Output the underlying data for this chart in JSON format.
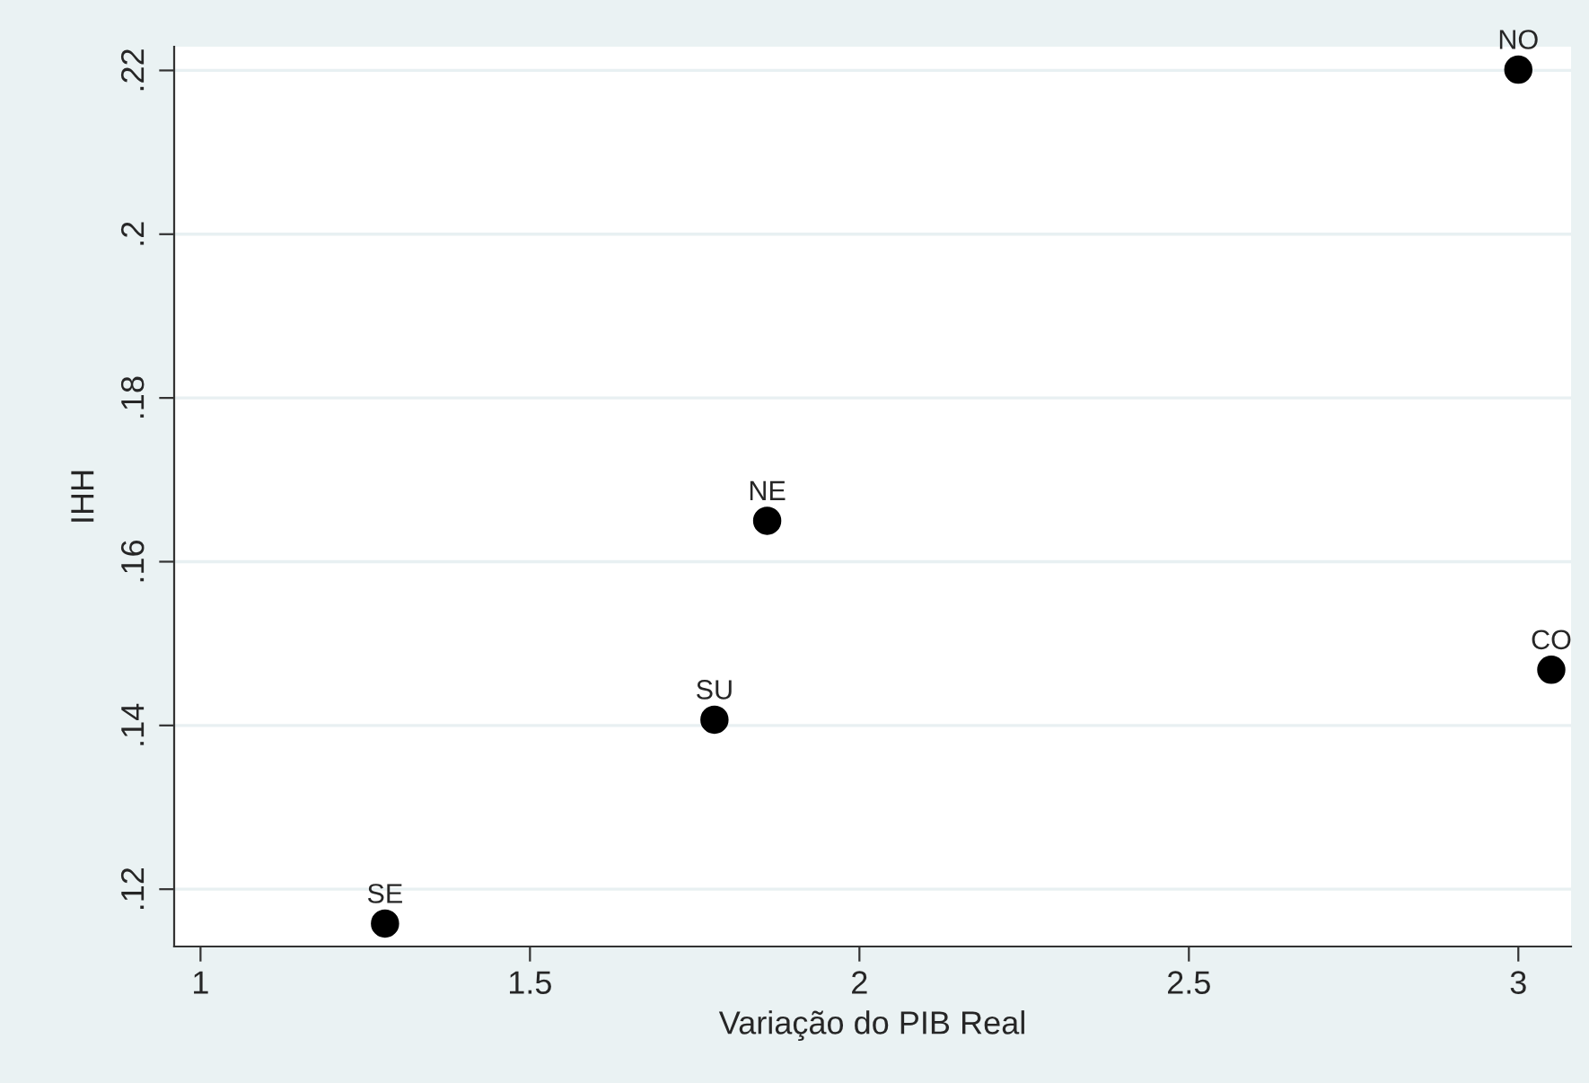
{
  "chart_data": {
    "type": "scatter",
    "xlabel": "Variação do PIB Real",
    "ylabel": "IHH",
    "x": [
      1.28,
      1.78,
      1.86,
      3.0,
      3.05
    ],
    "series": [
      {
        "color": "#000000",
        "values": [
          0.1158,
          0.1407,
          0.165,
          0.2201,
          0.1468
        ]
      }
    ],
    "annotations": [
      {
        "text": "SE",
        "x": 1.28,
        "y": 0.1158
      },
      {
        "text": "SU",
        "x": 1.78,
        "y": 0.1407
      },
      {
        "text": "NE",
        "x": 1.86,
        "y": 0.165
      },
      {
        "text": "NO",
        "x": 3.0,
        "y": 0.2201
      },
      {
        "text": "CO",
        "x": 3.05,
        "y": 0.1468
      }
    ],
    "xlim": [
      0.96,
      3.08
    ],
    "xticks": [
      1,
      1.5,
      2,
      2.5,
      3
    ],
    "ylim": [
      0.113,
      0.2229
    ],
    "yticks": [
      {
        "value": 0.12,
        "label": ".12"
      },
      {
        "value": 0.14,
        "label": ".14"
      },
      {
        "value": 0.16,
        "label": ".16"
      },
      {
        "value": 0.18,
        "label": ".18"
      },
      {
        "value": 0.2,
        "label": ".2"
      },
      {
        "value": 0.22,
        "label": ".22"
      }
    ],
    "grid": "y",
    "marker": "circle"
  }
}
